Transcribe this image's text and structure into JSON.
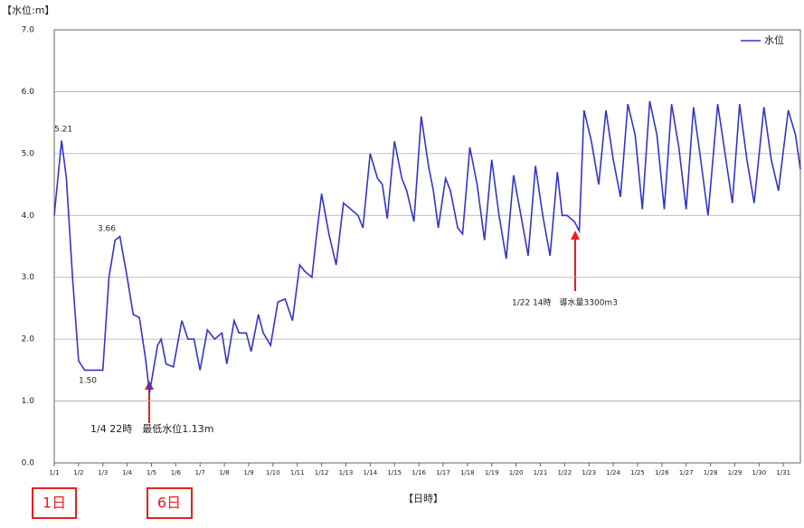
{
  "chart_data": {
    "type": "line",
    "y_axis_title": "【水位:m】",
    "x_axis_title": "【日時】",
    "x": [
      0,
      0.15,
      0.3,
      0.5,
      0.75,
      1.0,
      1.25,
      1.6,
      2.0,
      2.25,
      2.5,
      2.7,
      3.0,
      3.25,
      3.5,
      3.75,
      3.92,
      4.25,
      4.4,
      4.6,
      4.9,
      5.25,
      5.5,
      5.75,
      6.0,
      6.3,
      6.6,
      6.9,
      7.1,
      7.4,
      7.6,
      7.9,
      8.1,
      8.4,
      8.6,
      8.9,
      9.2,
      9.5,
      9.8,
      10.1,
      10.3,
      10.6,
      10.8,
      11.0,
      11.3,
      11.6,
      11.9,
      12.2,
      12.5,
      12.7,
      13.0,
      13.3,
      13.5,
      13.7,
      14.0,
      14.3,
      14.5,
      14.8,
      15.1,
      15.4,
      15.6,
      15.8,
      16.1,
      16.3,
      16.6,
      16.8,
      17.1,
      17.4,
      17.7,
      18.0,
      18.3,
      18.6,
      18.9,
      19.2,
      19.5,
      19.8,
      20.1,
      20.4,
      20.7,
      20.9,
      21.1,
      21.4,
      21.6,
      21.8,
      22.1,
      22.4,
      22.7,
      23.0,
      23.3,
      23.6,
      23.9,
      24.2,
      24.5,
      24.8,
      25.1,
      25.4,
      25.7,
      26.0,
      26.3,
      26.6,
      26.9,
      27.3,
      27.6,
      27.9,
      28.2,
      28.5,
      28.8,
      29.2,
      29.5,
      29.8,
      30.2,
      30.5,
      30.7
    ],
    "series": [
      {
        "name": "水位",
        "color": "#3535c8",
        "values": [
          4.0,
          4.6,
          5.21,
          4.6,
          3.0,
          1.65,
          1.5,
          1.5,
          1.5,
          3.0,
          3.6,
          3.66,
          3.0,
          2.4,
          2.35,
          1.7,
          1.13,
          1.9,
          2.0,
          1.6,
          1.55,
          2.3,
          2.0,
          2.0,
          1.5,
          2.15,
          2.0,
          2.1,
          1.6,
          2.3,
          2.1,
          2.1,
          1.8,
          2.4,
          2.1,
          1.9,
          2.6,
          2.65,
          2.3,
          3.2,
          3.1,
          3.0,
          3.7,
          4.35,
          3.7,
          3.2,
          4.2,
          4.1,
          4.0,
          3.8,
          5.0,
          4.6,
          4.5,
          3.95,
          5.2,
          4.6,
          4.4,
          3.9,
          5.6,
          4.8,
          4.4,
          3.8,
          4.6,
          4.4,
          3.8,
          3.7,
          5.1,
          4.5,
          3.6,
          4.9,
          4.0,
          3.3,
          4.65,
          4.0,
          3.35,
          4.8,
          4.0,
          3.35,
          4.7,
          4.0,
          4.0,
          3.9,
          3.75,
          5.7,
          5.2,
          4.5,
          5.7,
          4.9,
          4.3,
          5.8,
          5.3,
          4.1,
          5.85,
          5.3,
          4.1,
          5.8,
          5.1,
          4.1,
          5.75,
          4.9,
          4.0,
          5.8,
          5.0,
          4.2,
          5.8,
          4.9,
          4.2,
          5.75,
          4.9,
          4.4,
          5.7,
          5.3,
          4.75
        ]
      }
    ],
    "xlim": [
      0,
      30.7
    ],
    "xticks": [
      {
        "value": 0,
        "label": "1/1"
      },
      {
        "value": 1,
        "label": "1/2"
      },
      {
        "value": 2,
        "label": "1/3"
      },
      {
        "value": 3,
        "label": "1/4"
      },
      {
        "value": 4,
        "label": "1/5"
      },
      {
        "value": 5,
        "label": "1/6"
      },
      {
        "value": 6,
        "label": "1/7"
      },
      {
        "value": 7,
        "label": "1/8"
      },
      {
        "value": 8,
        "label": "1/9"
      },
      {
        "value": 9,
        "label": "1/10"
      },
      {
        "value": 10,
        "label": "1/11"
      },
      {
        "value": 11,
        "label": "1/12"
      },
      {
        "value": 12,
        "label": "1/13"
      },
      {
        "value": 13,
        "label": "1/14"
      },
      {
        "value": 14,
        "label": "1/15"
      },
      {
        "value": 15,
        "label": "1/16"
      },
      {
        "value": 16,
        "label": "1/17"
      },
      {
        "value": 17,
        "label": "1/18"
      },
      {
        "value": 18,
        "label": "1/19"
      },
      {
        "value": 19,
        "label": "1/20"
      },
      {
        "value": 20,
        "label": "1/21"
      },
      {
        "value": 21,
        "label": "1/22"
      },
      {
        "value": 22,
        "label": "1/23"
      },
      {
        "value": 23,
        "label": "1/24"
      },
      {
        "value": 24,
        "label": "1/25"
      },
      {
        "value": 25,
        "label": "1/26"
      },
      {
        "value": 26,
        "label": "1/27"
      },
      {
        "value": 27,
        "label": "1/28"
      },
      {
        "value": 28,
        "label": "1/29"
      },
      {
        "value": 29,
        "label": "1/30"
      },
      {
        "value": 30,
        "label": "1/31"
      }
    ],
    "ylim": [
      0,
      7
    ],
    "yticks": [
      {
        "value": 0,
        "label": "0.0"
      },
      {
        "value": 1,
        "label": "1.0"
      },
      {
        "value": 2,
        "label": "2.0"
      },
      {
        "value": 3,
        "label": "3.0"
      },
      {
        "value": 4,
        "label": "4.0"
      },
      {
        "value": 5,
        "label": "5.0"
      },
      {
        "value": 6,
        "label": "6.0"
      },
      {
        "value": 7,
        "label": "7.0"
      }
    ],
    "grid": true,
    "legend": "top-right",
    "annotations": [
      "5.21",
      "3.66",
      "1.50",
      "1/4 22時　最低水位1.13m",
      "1/22 14時　導水量3300m3"
    ],
    "callouts": [
      "1日",
      "6日"
    ]
  }
}
